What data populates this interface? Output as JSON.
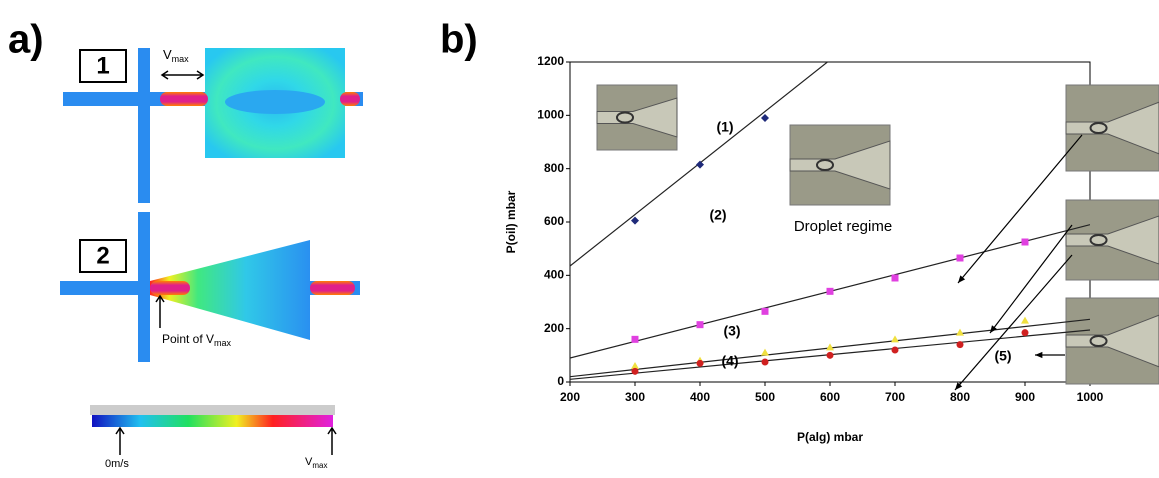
{
  "panel_a": {
    "label": "a)",
    "box_1": "1",
    "box_2": "2",
    "v_label": "V",
    "v_sub": "max",
    "point_label": "Point of V",
    "point_sub": "max",
    "scale_min": "0m/s",
    "scale_max_label": "V",
    "scale_max_sub": "max"
  },
  "panel_b_label": "b)",
  "chart_data": {
    "type": "scatter",
    "xlabel": "P(alg) mbar",
    "ylabel": "P(oil) mbar",
    "xlim": [
      200,
      1000
    ],
    "ylim": [
      0,
      1200
    ],
    "xticks": [
      200,
      300,
      400,
      500,
      600,
      700,
      800,
      900,
      1000
    ],
    "yticks": [
      0,
      200,
      400,
      600,
      800,
      1000,
      1200
    ],
    "trend_x": [
      200,
      1000
    ],
    "series": [
      {
        "name": "(1)",
        "color": "#1f2a7a",
        "marker": "diamond",
        "x": [
          300,
          400,
          500
        ],
        "values": [
          605,
          815,
          990
        ],
        "trend": [
          435,
          1980
        ]
      },
      {
        "name": "(2)",
        "color": "#e040e0",
        "marker": "square",
        "x": [
          300,
          400,
          500,
          600,
          700,
          800,
          900
        ],
        "values": [
          160,
          215,
          265,
          340,
          390,
          465,
          525
        ],
        "trend": [
          90,
          590
        ]
      },
      {
        "name": "(3)",
        "color": "#f0e040",
        "marker": "triangle",
        "x": [
          300,
          400,
          500,
          600,
          700,
          800,
          900
        ],
        "values": [
          60,
          80,
          110,
          130,
          160,
          185,
          230
        ],
        "trend": [
          20,
          235
        ]
      },
      {
        "name": "(4)",
        "color": "#d02020",
        "marker": "circle",
        "x": [
          300,
          400,
          500,
          600,
          700,
          800,
          900
        ],
        "values": [
          40,
          70,
          75,
          100,
          120,
          140,
          185
        ],
        "trend": [
          10,
          195
        ]
      }
    ],
    "annotations": [
      "(5)",
      "Droplet regime"
    ]
  }
}
